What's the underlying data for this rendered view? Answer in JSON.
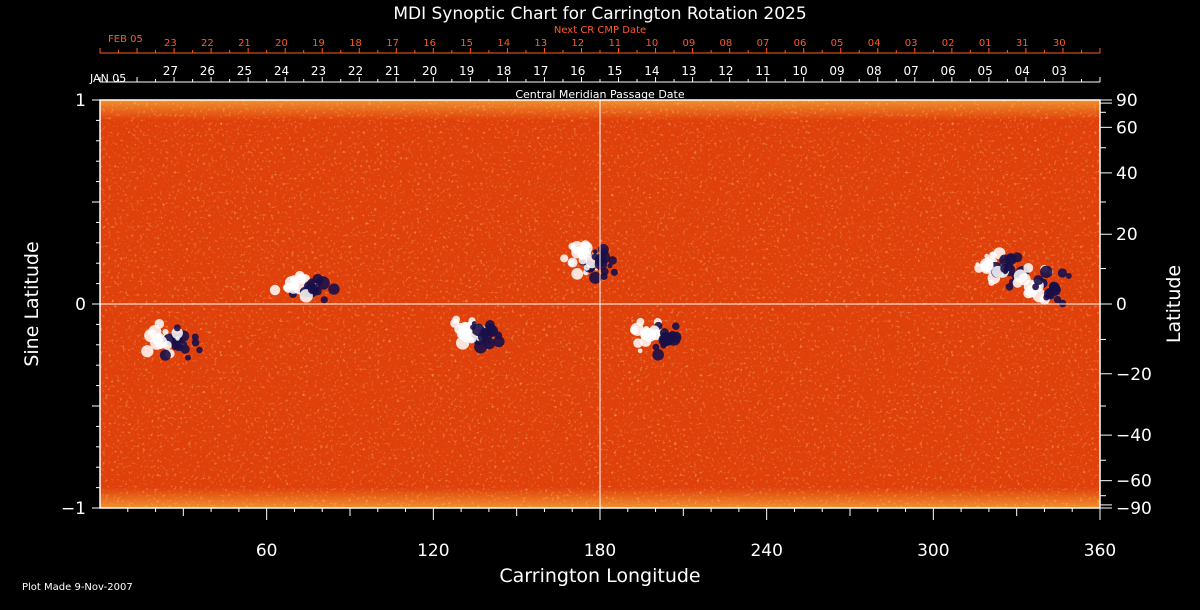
{
  "chart_data": {
    "type": "heatmap",
    "title": "MDI Synoptic Chart for Carrington Rotation 2025",
    "xlabel": "Carrington Longitude",
    "ylabel_left": "Sine Latitude",
    "ylabel_right": "Latitude",
    "xlim": [
      0,
      360
    ],
    "ylim_sine": [
      -1,
      1
    ],
    "x_ticks": [
      60,
      120,
      180,
      240,
      300,
      360
    ],
    "x_tick_labels": [
      "60",
      "120",
      "180",
      "240",
      "300",
      "360"
    ],
    "y_left_ticks": [
      1,
      0,
      -1
    ],
    "y_left_tick_labels": [
      "1",
      "0",
      "−1"
    ],
    "y_right_ticks_deg": [
      90,
      60,
      40,
      20,
      0,
      -20,
      -40,
      -60,
      -90
    ],
    "y_right_tick_labels": [
      "90",
      "60",
      "40",
      "20",
      "0",
      "−20",
      "−40",
      "−60",
      "−90"
    ],
    "top_axis_next": {
      "label": "Next CR CMP Date",
      "start_label": "FEB 05",
      "dates": [
        "23",
        "22",
        "21",
        "20",
        "19",
        "18",
        "17",
        "16",
        "15",
        "14",
        "13",
        "12",
        "11",
        "10",
        "09",
        "08",
        "07",
        "06",
        "05",
        "04",
        "03",
        "02",
        "01",
        "31",
        "30"
      ]
    },
    "top_axis_current": {
      "label": "Central Meridian Passage Date",
      "start_label": "JAN 05",
      "dates": [
        "27",
        "26",
        "25",
        "24",
        "23",
        "22",
        "21",
        "20",
        "19",
        "18",
        "17",
        "16",
        "15",
        "14",
        "13",
        "12",
        "11",
        "10",
        "09",
        "08",
        "07",
        "06",
        "05",
        "04",
        "03"
      ]
    },
    "colors": {
      "background": "#e0400a",
      "positive": "#ffffff",
      "negative": "#1a1048",
      "grid": "#ffffff",
      "date_accent": "#ff5a2a"
    },
    "active_regions": [
      {
        "lon": 177,
        "sinlat": 0.22,
        "polarity": "mixed"
      },
      {
        "lon": 200,
        "sinlat": -0.15,
        "polarity": "mixed"
      },
      {
        "lon": 25,
        "sinlat": -0.18,
        "polarity": "mixed"
      },
      {
        "lon": 73,
        "sinlat": 0.09,
        "polarity": "mixed"
      },
      {
        "lon": 135,
        "sinlat": -0.12,
        "polarity": "mixed"
      },
      {
        "lon": 322,
        "sinlat": 0.18,
        "polarity": "mixed"
      },
      {
        "lon": 340,
        "sinlat": 0.1,
        "polarity": "mixed"
      }
    ]
  },
  "footer": {
    "plot_made": "Plot Made  9-Nov-2007"
  }
}
